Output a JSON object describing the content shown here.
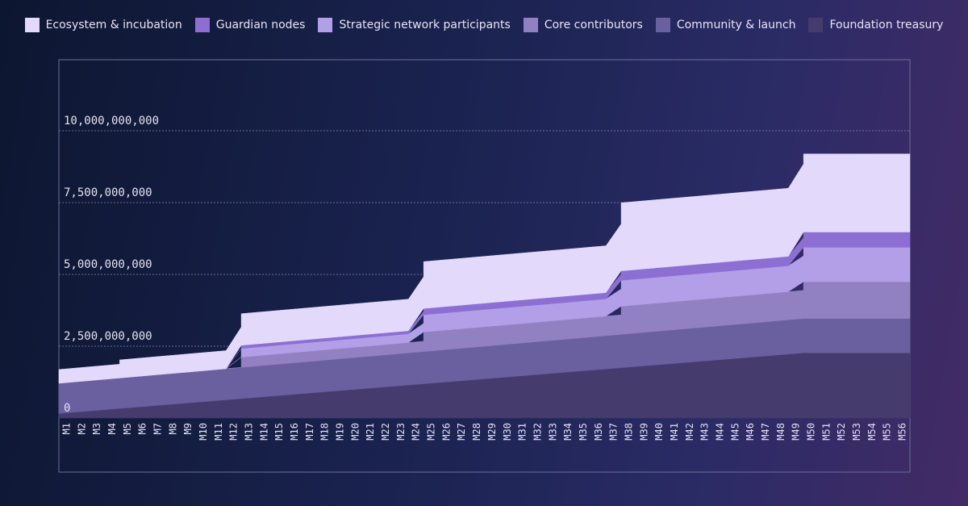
{
  "chart_data": {
    "type": "area",
    "stacked": true,
    "step": true,
    "title": "",
    "xlabel": "",
    "ylabel": "",
    "ylim": [
      0,
      10000000000
    ],
    "yticks": [
      {
        "value": 0,
        "label": "0"
      },
      {
        "value": 2500000000,
        "label": "2,500,000,000"
      },
      {
        "value": 5000000000,
        "label": "5,000,000,000"
      },
      {
        "value": 7500000000,
        "label": "7,500,000,000"
      },
      {
        "value": 10000000000,
        "label": "10,000,000,000"
      }
    ],
    "x": [
      "M1",
      "M2",
      "M3",
      "M4",
      "M5",
      "M6",
      "M7",
      "M8",
      "M9",
      "M10",
      "M11",
      "M12",
      "M13",
      "M14",
      "M15",
      "M16",
      "M17",
      "M18",
      "M19",
      "M20",
      "M21",
      "M22",
      "M23",
      "M24",
      "M25",
      "M26",
      "M27",
      "M28",
      "M29",
      "M30",
      "M31",
      "M32",
      "M33",
      "M34",
      "M35",
      "M36",
      "M37",
      "M38",
      "M39",
      "M40",
      "M41",
      "M42",
      "M43",
      "M44",
      "M45",
      "M46",
      "M47",
      "M48",
      "M49",
      "M50",
      "M51",
      "M52",
      "M53",
      "M54",
      "M55",
      "M56"
    ],
    "legend_position": "top",
    "grid": "horizontal-dotted",
    "series": [
      {
        "name": "Foundation treasury",
        "color": "#453b6d",
        "start": 160000000,
        "monthly_increase": 43000000,
        "increase_until": "M50",
        "cliffs": []
      },
      {
        "name": "Community & launch",
        "color": "#6a5f9f",
        "start": 1050000000,
        "monthly_increase": 3000000,
        "increase_until": "M50",
        "cliffs": []
      },
      {
        "name": "Core contributors",
        "color": "#9281c2",
        "start": 0,
        "monthly_increase": 0,
        "increase_until": "M50",
        "cliffs": [
          {
            "at": "M13",
            "amount": 360000000
          },
          {
            "at": "M25",
            "amount": 320000000
          },
          {
            "at": "M38",
            "amount": 300000000
          },
          {
            "at": "M50",
            "amount": 300000000
          }
        ]
      },
      {
        "name": "Strategic network participants",
        "color": "#b39fe8",
        "start": 0,
        "monthly_increase": 0,
        "increase_until": "M50",
        "cliffs": [
          {
            "at": "M13",
            "amount": 300000000
          },
          {
            "at": "M25",
            "amount": 300000000
          },
          {
            "at": "M38",
            "amount": 300000000
          },
          {
            "at": "M50",
            "amount": 300000000
          }
        ]
      },
      {
        "name": "Guardian nodes",
        "color": "#8d6fd4",
        "start": 0,
        "monthly_increase": 0,
        "increase_until": "M50",
        "cliffs": [
          {
            "at": "M13",
            "amount": 110000000
          },
          {
            "at": "M25",
            "amount": 110000000
          },
          {
            "at": "M38",
            "amount": 110000000
          },
          {
            "at": "M50",
            "amount": 200000000
          }
        ]
      },
      {
        "name": "Ecosystem & incubation",
        "color": "#e2d9fb",
        "start": 480000000,
        "monthly_increase": 0,
        "increase_until": "M50",
        "cliffs": [
          {
            "at": "M5",
            "amount": 150000000
          },
          {
            "at": "M13",
            "amount": 470000000
          },
          {
            "at": "M25",
            "amount": 530000000
          },
          {
            "at": "M38",
            "amount": 740000000
          },
          {
            "at": "M50",
            "amount": 350000000
          }
        ]
      }
    ],
    "legend_order": [
      "Ecosystem & incubation",
      "Guardian nodes",
      "Strategic network participants",
      "Core contributors",
      "Community & launch",
      "Foundation treasury"
    ]
  }
}
